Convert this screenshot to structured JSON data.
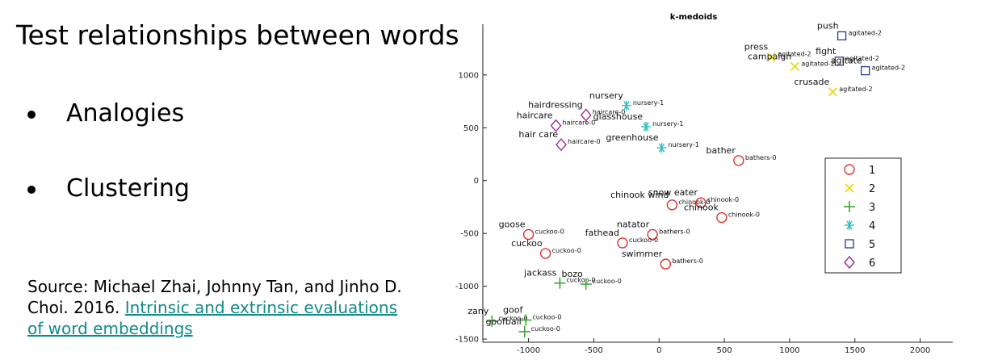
{
  "slide": {
    "title": "Test relationships between words",
    "bullets": [
      "Analogies",
      "Clustering"
    ],
    "source_prefix": "Source: Michael Zhai, Johnny Tan, and Jinho D. Choi. 2016. ",
    "source_link": "Intrinsic and extrinsic evaluations of word embeddings",
    "link_color": "#118a8a"
  },
  "chart_data": {
    "type": "scatter",
    "title": "k-medoids",
    "xlabel": "",
    "ylabel": "",
    "xlim": [
      -1350,
      2250
    ],
    "ylim": [
      -1530,
      1480
    ],
    "xticks": [
      -1000,
      -500,
      0,
      500,
      1000,
      1500,
      2000
    ],
    "yticks": [
      -1500,
      -1000,
      -500,
      0,
      500,
      1000
    ],
    "grid": false,
    "legend_position": "right",
    "clusters": [
      {
        "name": "1",
        "marker": "circle",
        "color": "#e0312f"
      },
      {
        "name": "2",
        "marker": "x",
        "color": "#e6d900"
      },
      {
        "name": "3",
        "marker": "plus",
        "color": "#3aa635"
      },
      {
        "name": "4",
        "marker": "asterisk",
        "color": "#2fbfbf"
      },
      {
        "name": "5",
        "marker": "square",
        "color": "#2b3a8c"
      },
      {
        "name": "6",
        "marker": "diamond",
        "color": "#9b2d8f"
      }
    ],
    "points": [
      {
        "word": "push",
        "medoid": "agitated-2",
        "x": 1400,
        "y": 1370,
        "cluster": "5"
      },
      {
        "word": "press",
        "medoid": "agitated-2",
        "x": 860,
        "y": 1170,
        "cluster": "2"
      },
      {
        "word": "fight",
        "medoid": "agitated-2",
        "x": 1380,
        "y": 1130,
        "cluster": "5"
      },
      {
        "word": "agitate",
        "medoid": "agitated-2",
        "x": 1580,
        "y": 1040,
        "cluster": "5"
      },
      {
        "word": "campaign",
        "medoid": "agitated-2",
        "x": 1040,
        "y": 1080,
        "cluster": "2"
      },
      {
        "word": "crusade",
        "medoid": "agitated-2",
        "x": 1330,
        "y": 840,
        "cluster": "2"
      },
      {
        "word": "hairdressing",
        "medoid": "haircare-0",
        "x": -560,
        "y": 620,
        "cluster": "6"
      },
      {
        "word": "nursery",
        "medoid": "nursery-1",
        "x": -250,
        "y": 710,
        "cluster": "4"
      },
      {
        "word": "haircare",
        "medoid": "haircare-0",
        "x": -790,
        "y": 520,
        "cluster": "6"
      },
      {
        "word": "glasshouse",
        "medoid": "nursery-1",
        "x": -100,
        "y": 510,
        "cluster": "4"
      },
      {
        "word": "hair care",
        "medoid": "haircare-0",
        "x": -750,
        "y": 340,
        "cluster": "6"
      },
      {
        "word": "greenhouse",
        "medoid": "nursery-1",
        "x": 20,
        "y": 310,
        "cluster": "4"
      },
      {
        "word": "bather",
        "medoid": "bathers-0",
        "x": 610,
        "y": 190,
        "cluster": "1"
      },
      {
        "word": "snow eater",
        "medoid": "chinook-0",
        "x": 320,
        "y": -210,
        "cluster": "1"
      },
      {
        "word": "chinook wind",
        "medoid": "chinook-0",
        "x": 100,
        "y": -230,
        "cluster": "1"
      },
      {
        "word": "chinook",
        "medoid": "chinook-0",
        "x": 480,
        "y": -350,
        "cluster": "1"
      },
      {
        "word": "goose",
        "medoid": "cuckoo-0",
        "x": -1000,
        "y": -510,
        "cluster": "1"
      },
      {
        "word": "natator",
        "medoid": "bathers-0",
        "x": -50,
        "y": -510,
        "cluster": "1"
      },
      {
        "word": "fathead",
        "medoid": "cuckoo-0",
        "x": -280,
        "y": -590,
        "cluster": "1"
      },
      {
        "word": "cuckoo",
        "medoid": "cuckoo-0",
        "x": -870,
        "y": -690,
        "cluster": "1"
      },
      {
        "word": "swimmer",
        "medoid": "bathers-0",
        "x": 50,
        "y": -790,
        "cluster": "1"
      },
      {
        "word": "jackass",
        "medoid": "cuckoo-0",
        "x": -760,
        "y": -970,
        "cluster": "3"
      },
      {
        "word": "bozo",
        "medoid": "cuckoo-0",
        "x": -560,
        "y": -980,
        "cluster": "3"
      },
      {
        "word": "zany",
        "medoid": "cuckoo-0",
        "x": -1280,
        "y": -1330,
        "cluster": "3"
      },
      {
        "word": "goof",
        "medoid": "cuckoo-0",
        "x": -1020,
        "y": -1320,
        "cluster": "3"
      },
      {
        "word": "goofball",
        "medoid": "cuckoo-0",
        "x": -1030,
        "y": -1430,
        "cluster": "3"
      }
    ]
  }
}
